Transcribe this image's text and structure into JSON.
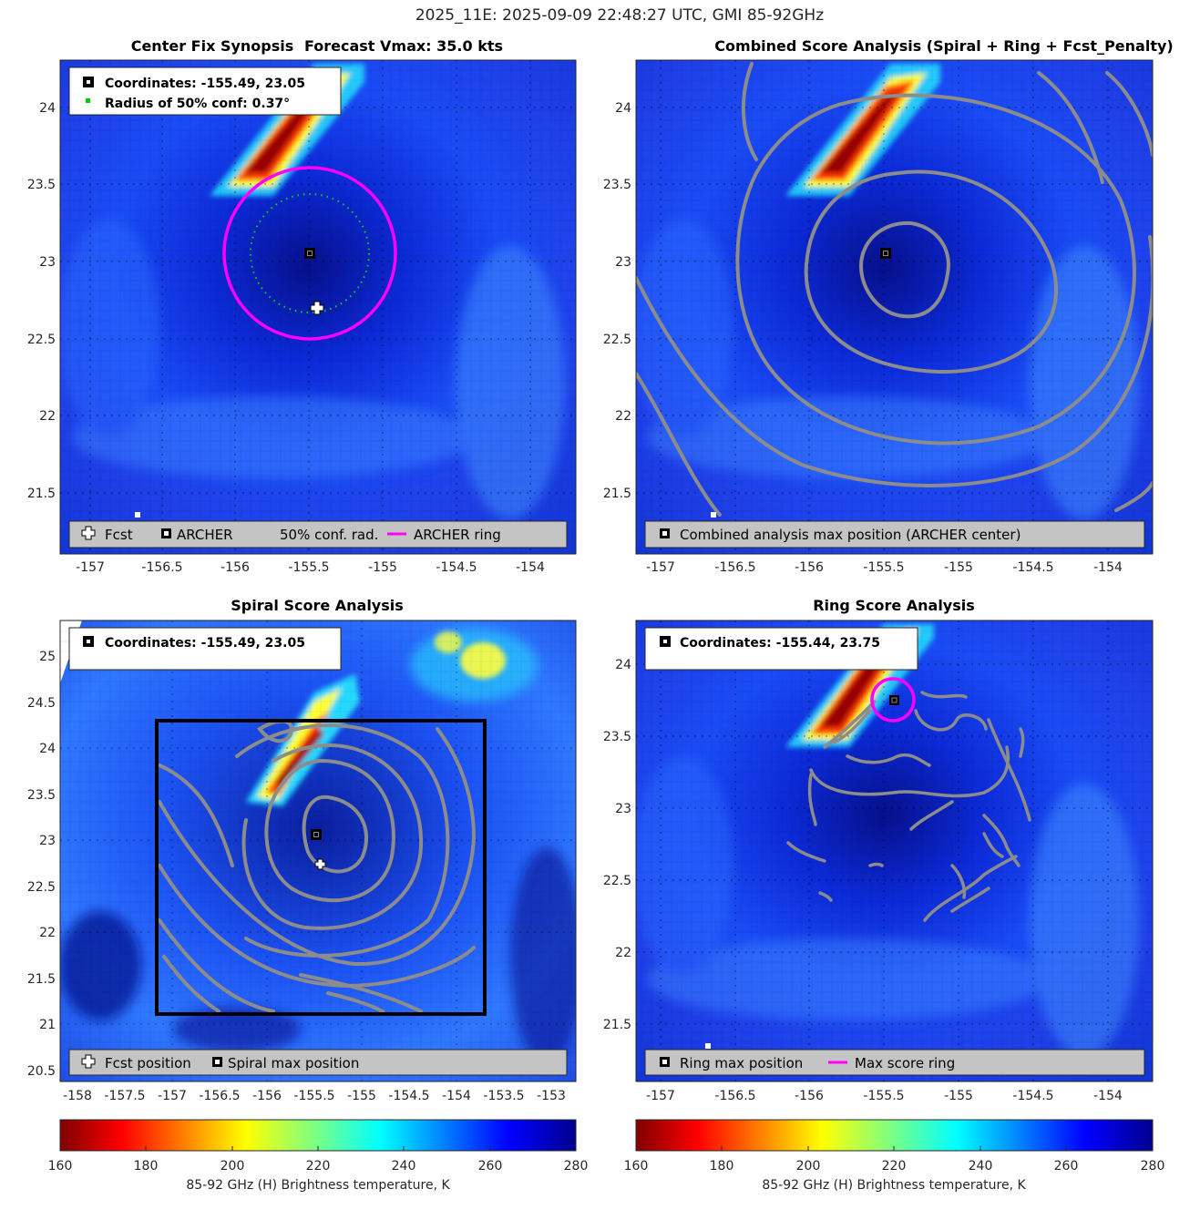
{
  "figure": {
    "suptitle": "2025_11E: 2025-09-09 22:48:27 UTC, GMI 85-92GHz"
  },
  "panels": [
    {
      "id": "synopsis",
      "title_left": "Center Fix Synopsis",
      "title_right": "Forecast Vmax: 35.0 kts",
      "info_lines": [
        "Coordinates: -155.49, 23.05",
        "Radius of 50% conf: 0.37°"
      ],
      "legend": [
        "Fcst",
        "ARCHER",
        "50% conf. rad.",
        "ARCHER ring"
      ],
      "x_ticks": [
        -157,
        -156.5,
        -156,
        -155.5,
        -155,
        -154.5,
        -154
      ],
      "y_ticks": [
        21.5,
        22,
        22.5,
        23,
        23.5,
        24
      ]
    },
    {
      "id": "combined",
      "title": "Combined Score Analysis (Spiral + Ring + Fcst_Penalty)",
      "legend": [
        "Combined analysis max position (ARCHER center)"
      ],
      "x_ticks": [
        -157,
        -156.5,
        -156,
        -155.5,
        -155,
        -154.5,
        -154
      ],
      "y_ticks": [
        21.5,
        22,
        22.5,
        23,
        23.5,
        24
      ]
    },
    {
      "id": "spiral",
      "title": "Spiral Score Analysis",
      "info_lines": [
        "Coordinates: -155.49, 23.05"
      ],
      "legend": [
        "Fcst position",
        "Spiral max position"
      ],
      "x_ticks": [
        -158,
        -157.5,
        -157,
        -156.5,
        -156,
        -155.5,
        -155,
        -154.5,
        -154,
        -153.5,
        -153
      ],
      "y_ticks": [
        20.5,
        21,
        21.5,
        22,
        22.5,
        23,
        23.5,
        24,
        24.5,
        25
      ]
    },
    {
      "id": "ring",
      "title": "Ring Score Analysis",
      "info_lines": [
        "Coordinates: -155.44, 23.75"
      ],
      "legend": [
        "Ring max position",
        "Max score ring"
      ],
      "x_ticks": [
        -157,
        -156.5,
        -156,
        -155.5,
        -155,
        -154.5,
        -154
      ],
      "y_ticks": [
        21.5,
        22,
        22.5,
        23,
        23.5,
        24
      ]
    }
  ],
  "colorbars": [
    {
      "ticks": [
        160,
        180,
        200,
        220,
        240,
        260,
        280
      ],
      "label": "85-92 GHz (H) Brightness temperature, K"
    },
    {
      "ticks": [
        160,
        180,
        200,
        220,
        240,
        260,
        280
      ],
      "label": "85-92 GHz (H) Brightness temperature, K"
    }
  ],
  "colors": {
    "archer_ring": "#ff00ff",
    "conf_radius": "#00dd00",
    "contour": "#8c8c8c",
    "colormap": "jet_reversed"
  },
  "chart_data": [
    {
      "type": "heatmap",
      "title": "Center Fix Synopsis",
      "subtitle": "Forecast Vmax: 35.0 kts",
      "xlim": [
        -157.2,
        -153.7
      ],
      "ylim": [
        21.1,
        24.3
      ],
      "clim": [
        160,
        280
      ],
      "archer_center": [
        -155.49,
        23.05
      ],
      "forecast_position": [
        -155.45,
        22.7
      ],
      "conf_radius_deg": 0.37,
      "archer_ring_radius_deg": 0.6,
      "cold_band": [
        [
          -155.8,
          23.5
        ],
        [
          -155.6,
          23.8
        ],
        [
          -155.4,
          24.1
        ],
        [
          -155.2,
          24.3
        ]
      ]
    },
    {
      "type": "heatmap",
      "title": "Combined Score Analysis (Spiral + Ring + Fcst_Penalty)",
      "xlim": [
        -157.2,
        -153.7
      ],
      "ylim": [
        21.1,
        24.3
      ],
      "max_position": [
        -155.49,
        23.05
      ]
    },
    {
      "type": "heatmap",
      "title": "Spiral Score Analysis",
      "xlim": [
        -158.1,
        -152.7
      ],
      "ylim": [
        20.4,
        25.4
      ],
      "spiral_max": [
        -155.49,
        23.05
      ],
      "forecast_position": [
        -155.45,
        22.7
      ],
      "search_box": {
        "lon": [
          -157.0,
          -153.6
        ],
        "lat": [
          21.1,
          24.3
        ]
      }
    },
    {
      "type": "heatmap",
      "title": "Ring Score Analysis",
      "xlim": [
        -157.2,
        -153.7
      ],
      "ylim": [
        21.1,
        24.3
      ],
      "ring_max": [
        -155.44,
        23.75
      ],
      "max_ring_radius_deg": 0.15
    }
  ]
}
